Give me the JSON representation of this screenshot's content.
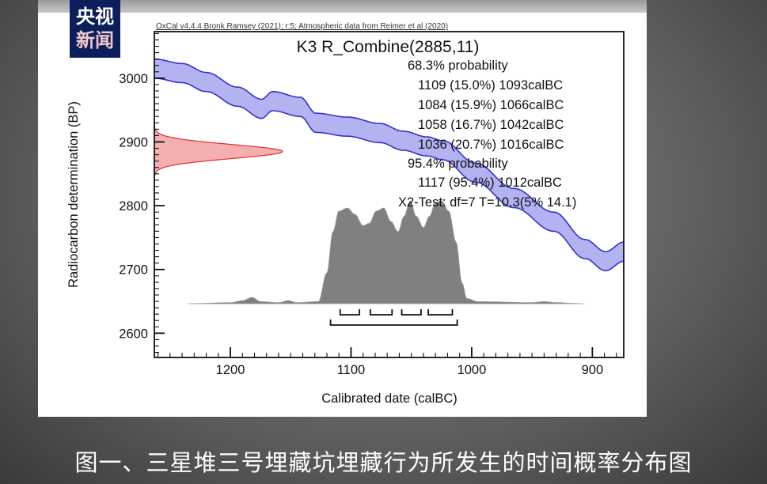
{
  "logo": {
    "line1": "央视",
    "line2": "新闻"
  },
  "caption": "图一、三星堆三号埋藏坑埋藏行为所发生的时间概率分布图",
  "chart_data": {
    "type": "area",
    "header": "OxCal v4.4.4 Bronk Ramsey (2021); r:5; Atmospheric data from Reimer et al (2020)",
    "title": "K3 R_Combine(2885,11)",
    "xlabel": "Calibrated date (calBC)",
    "ylabel": "Radiocarbon determination (BP)",
    "xlim": [
      1263,
      874
    ],
    "ylim": [
      2562,
      3073
    ],
    "xticks": [
      1200,
      1100,
      1000,
      900
    ],
    "yticks": [
      3000,
      2900,
      2800,
      2700,
      2600
    ],
    "colors": {
      "calibration_curve": "#3333cc",
      "calibration_fill": "#b3b3f2",
      "measurement": "#e03030",
      "measurement_fill": "#f4b0b0",
      "posterior": "#808080"
    },
    "measurement": {
      "mean_bp": 2885,
      "sigma": 11
    },
    "calibration_curve": {
      "dates": [
        1263,
        1240,
        1220,
        1194,
        1174,
        1165,
        1142,
        1129,
        1103,
        1076,
        1057,
        1037,
        1024,
        997,
        965,
        932,
        906,
        889,
        874
      ],
      "bp": [
        3015,
        3008,
        2994,
        2971,
        2952,
        2964,
        2955,
        2930,
        2924,
        2914,
        2902,
        2893,
        2887,
        2852,
        2812,
        2775,
        2732,
        2713,
        2728
      ],
      "half_width_bp": 15
    },
    "posterior": {
      "dates": [
        1235,
        1200,
        1190,
        1182,
        1175,
        1160,
        1152,
        1145,
        1127,
        1120,
        1115,
        1110,
        1103,
        1097,
        1090,
        1085,
        1079,
        1073,
        1067,
        1061,
        1056,
        1051,
        1046,
        1040,
        1035,
        1030,
        1025,
        1019,
        1013,
        1008,
        1004,
        995,
        950,
        940,
        930,
        907
      ],
      "density": [
        0,
        0.01,
        0.03,
        0.06,
        0.02,
        0.01,
        0.03,
        0.01,
        0.02,
        0.3,
        0.7,
        0.9,
        0.93,
        0.87,
        0.76,
        0.78,
        0.9,
        0.93,
        0.8,
        0.7,
        0.85,
        1.0,
        0.85,
        0.74,
        0.85,
        0.98,
        1.0,
        0.9,
        0.6,
        0.2,
        0.05,
        0.02,
        0.01,
        0.02,
        0.01,
        0
      ]
    },
    "range_68": {
      "label": "68.3% probability",
      "ranges": [
        {
          "text": "1109 (15.0%) 1093calBC",
          "from": 1109,
          "to": 1093
        },
        {
          "text": "1084 (15.9%) 1066calBC",
          "from": 1084,
          "to": 1066
        },
        {
          "text": "1058 (16.7%) 1042calBC",
          "from": 1058,
          "to": 1042
        },
        {
          "text": "1036 (20.7%) 1016calBC",
          "from": 1036,
          "to": 1016
        }
      ]
    },
    "range_95": {
      "label": "95.4% probability",
      "ranges": [
        {
          "text": "1117 (95.4%) 1012calBC",
          "from": 1117,
          "to": 1012
        }
      ]
    },
    "chi2_test": "X2-Test: df=7 T=10.3(5% 14.1)"
  }
}
